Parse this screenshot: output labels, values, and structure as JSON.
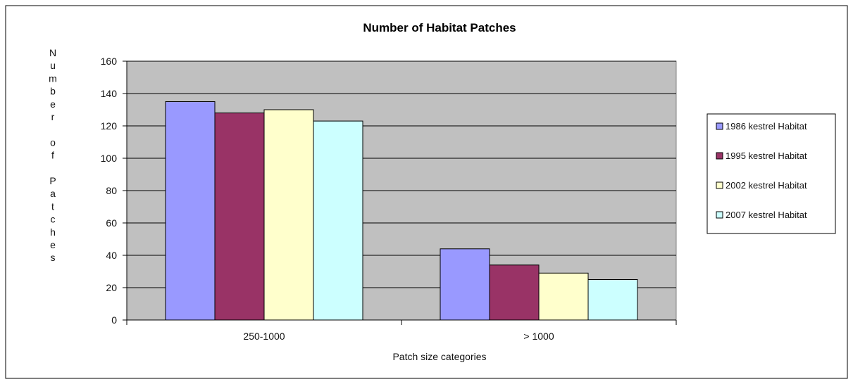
{
  "chart_data": {
    "type": "bar",
    "title": "Number of Habitat Patches",
    "xlabel": "Patch size categories",
    "ylabel": "Number of Patches",
    "categories": [
      "250-1000",
      "> 1000"
    ],
    "series": [
      {
        "name": "1986 kestrel Habitat",
        "values": [
          135,
          44
        ],
        "color": "#9999ff"
      },
      {
        "name": "1995 kestrel Habitat",
        "values": [
          128,
          34
        ],
        "color": "#993366"
      },
      {
        "name": "2002 kestrel Habitat",
        "values": [
          130,
          29
        ],
        "color": "#ffffcc"
      },
      {
        "name": "2007 kestrel Habitat",
        "values": [
          123,
          25
        ],
        "color": "#ccffff"
      }
    ],
    "ylim": [
      0,
      160
    ],
    "yticks": [
      0,
      20,
      40,
      60,
      80,
      100,
      120,
      140,
      160
    ],
    "grid": true,
    "plot_background": "#c0c0c0",
    "legend_position": "right"
  }
}
